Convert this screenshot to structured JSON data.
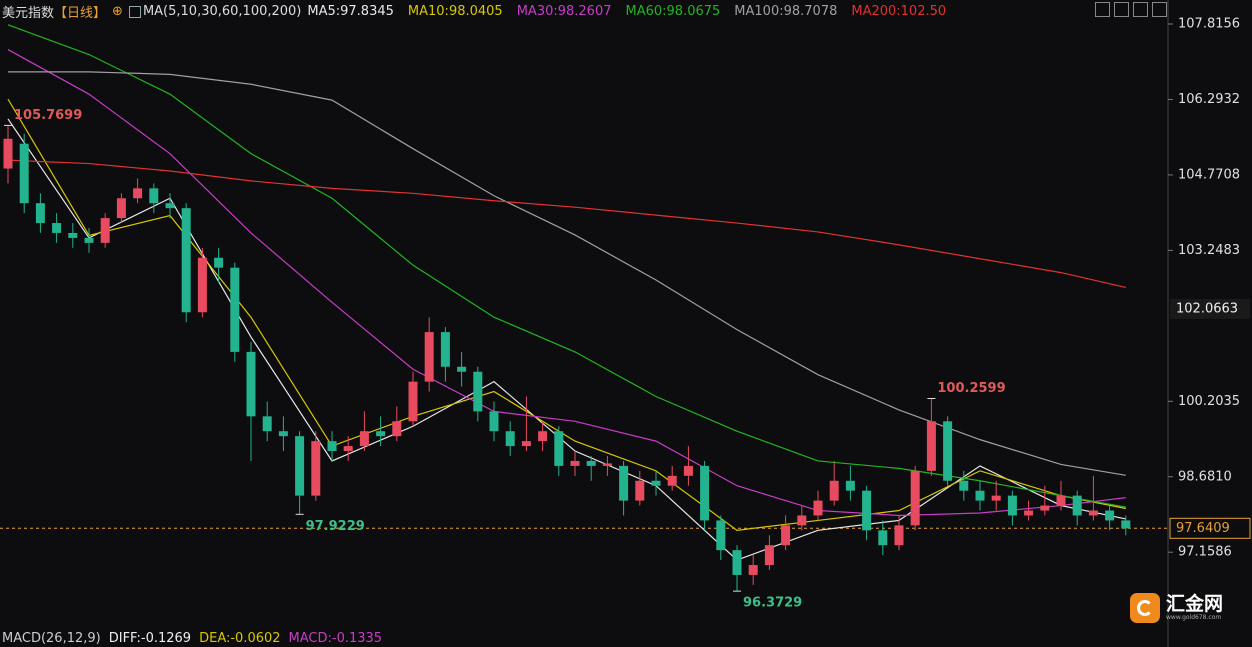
{
  "chart_data": {
    "type": "candlestick",
    "title": "美元指数",
    "period": "【日线】",
    "ma_label": "MA(5,10,30,60,100,200)",
    "categories": [
      null,
      null,
      null,
      null,
      null,
      null,
      null,
      null,
      null,
      null,
      null,
      null,
      null,
      null,
      null,
      null,
      null,
      null,
      null,
      null,
      null,
      null,
      null,
      null,
      null,
      null,
      null,
      null,
      null,
      null,
      null,
      null,
      null,
      null,
      null,
      null,
      null,
      null,
      null,
      null,
      null,
      null,
      null,
      null,
      null,
      null,
      null,
      null,
      null,
      null,
      null,
      null,
      null,
      null,
      null,
      null,
      null,
      null,
      null,
      null,
      null,
      null,
      null,
      null,
      null,
      null,
      null,
      null,
      null,
      null
    ],
    "open": [
      104.9,
      105.4,
      104.2,
      103.8,
      103.6,
      103.5,
      103.4,
      103.9,
      104.3,
      104.5,
      104.2,
      104.1,
      102.0,
      103.1,
      102.9,
      101.2,
      99.9,
      99.6,
      99.5,
      98.3,
      99.4,
      99.2,
      99.3,
      99.6,
      99.5,
      99.8,
      100.6,
      101.6,
      100.9,
      100.8,
      100.0,
      99.6,
      99.3,
      99.4,
      99.6,
      98.9,
      99.0,
      98.9,
      98.9,
      98.2,
      98.6,
      98.5,
      98.7,
      98.9,
      97.8,
      97.2,
      96.7,
      96.9,
      97.3,
      97.7,
      97.9,
      98.2,
      98.6,
      98.4,
      97.6,
      97.3,
      97.7,
      98.8,
      99.8,
      98.6,
      98.4,
      98.2,
      98.3,
      97.9,
      98.0,
      98.1,
      98.3,
      97.9,
      98.0,
      97.8
    ],
    "high": [
      105.7699,
      105.6,
      104.4,
      104.0,
      103.8,
      103.7,
      104.0,
      104.4,
      104.7,
      104.6,
      104.4,
      104.2,
      103.3,
      103.3,
      103.0,
      101.4,
      100.2,
      99.9,
      99.6,
      99.6,
      99.6,
      99.5,
      100.0,
      99.9,
      100.1,
      100.8,
      101.9,
      101.7,
      101.2,
      100.9,
      100.2,
      99.8,
      100.3,
      99.8,
      99.7,
      99.2,
      99.1,
      99.1,
      99.0,
      98.8,
      98.8,
      98.9,
      99.3,
      99.0,
      97.9,
      97.3,
      97.1,
      97.5,
      97.9,
      98.1,
      98.4,
      99.0,
      98.9,
      98.5,
      97.8,
      97.9,
      98.9,
      100.2599,
      99.9,
      98.8,
      98.6,
      98.6,
      98.4,
      98.2,
      98.5,
      98.6,
      98.4,
      98.7,
      98.1,
      97.9
    ],
    "low": [
      104.6,
      104.0,
      103.6,
      103.4,
      103.3,
      103.2,
      103.3,
      103.8,
      104.2,
      104.0,
      103.9,
      101.8,
      101.9,
      102.6,
      101.0,
      99.0,
      99.4,
      99.2,
      97.9229,
      98.2,
      99.0,
      99.0,
      99.2,
      99.3,
      99.4,
      99.7,
      100.4,
      100.6,
      100.5,
      99.8,
      99.4,
      99.1,
      99.2,
      99.2,
      98.7,
      98.7,
      98.6,
      98.7,
      97.9,
      98.1,
      98.3,
      98.4,
      98.5,
      97.6,
      97.0,
      96.3729,
      96.5,
      96.8,
      97.2,
      97.6,
      97.8,
      98.1,
      98.2,
      97.4,
      97.1,
      97.2,
      97.6,
      98.7,
      98.5,
      98.2,
      98.0,
      98.0,
      97.7,
      97.8,
      97.9,
      98.0,
      97.7,
      97.8,
      97.6,
      97.5
    ],
    "close": [
      105.5,
      104.2,
      103.8,
      103.6,
      103.5,
      103.4,
      103.9,
      104.3,
      104.5,
      104.2,
      104.1,
      102.0,
      103.1,
      102.9,
      101.2,
      99.9,
      99.6,
      99.5,
      98.3,
      99.4,
      99.2,
      99.3,
      99.6,
      99.5,
      99.8,
      100.6,
      101.6,
      100.9,
      100.8,
      100.0,
      99.6,
      99.3,
      99.4,
      99.6,
      98.9,
      99.0,
      98.9,
      98.95,
      98.2,
      98.6,
      98.5,
      98.7,
      98.9,
      97.8,
      97.2,
      96.7,
      96.9,
      97.3,
      97.7,
      97.9,
      98.2,
      98.6,
      98.4,
      97.6,
      97.3,
      97.7,
      98.8,
      99.8,
      98.6,
      98.4,
      98.2,
      98.3,
      97.9,
      98.0,
      98.1,
      98.3,
      97.9,
      98.0,
      97.8,
      97.64
    ],
    "up_color": "#e84a5f",
    "down_color": "#23b38e",
    "series": [
      {
        "name": "MA5:97.8345",
        "color": "#e8e8e8",
        "x": [
          0,
          5,
          10,
          15,
          20,
          25,
          30,
          35,
          40,
          45,
          50,
          55,
          60,
          65,
          69
        ],
        "values": [
          105.9,
          103.5,
          104.3,
          101.5,
          99.0,
          99.7,
          100.6,
          99.2,
          98.5,
          97.0,
          97.6,
          97.8,
          98.9,
          98.1,
          97.83
        ]
      },
      {
        "name": "MA10:98.0405",
        "color": "#d8c800",
        "x": [
          0,
          5,
          10,
          15,
          20,
          25,
          30,
          35,
          40,
          45,
          50,
          55,
          60,
          65,
          69
        ],
        "values": [
          106.3,
          103.55,
          103.95,
          101.9,
          99.3,
          99.9,
          100.4,
          99.4,
          98.8,
          97.6,
          97.8,
          98.0,
          98.8,
          98.3,
          98.04
        ]
      },
      {
        "name": "MA30:98.2607",
        "color": "#c83cc8",
        "x": [
          0,
          5,
          10,
          15,
          20,
          25,
          30,
          35,
          40,
          45,
          50,
          55,
          60,
          65,
          69
        ],
        "values": [
          107.3,
          106.4,
          105.2,
          103.6,
          102.2,
          100.85,
          100.0,
          99.8,
          99.4,
          98.5,
          98.0,
          97.9,
          97.95,
          98.1,
          98.26
        ]
      },
      {
        "name": "MA60:98.0675",
        "color": "#22b422",
        "x": [
          0,
          5,
          10,
          15,
          20,
          25,
          30,
          35,
          40,
          45,
          50,
          55,
          60,
          65,
          69
        ],
        "values": [
          107.8,
          107.2,
          106.4,
          105.2,
          104.3,
          102.95,
          101.9,
          101.2,
          100.3,
          99.6,
          99.0,
          98.85,
          98.6,
          98.3,
          98.07
        ]
      },
      {
        "name": "MA100:98.7078",
        "color": "#a0a0a0",
        "x": [
          0,
          5,
          10,
          15,
          20,
          25,
          30,
          35,
          40,
          45,
          50,
          55,
          60,
          65,
          69
        ],
        "values": [
          106.85,
          106.85,
          106.8,
          106.6,
          106.28,
          105.3,
          104.35,
          103.56,
          102.65,
          101.65,
          100.74,
          100.03,
          99.43,
          98.93,
          98.71
        ]
      },
      {
        "name": "MA200:102.50",
        "color": "#e23232",
        "x": [
          0,
          5,
          10,
          15,
          20,
          25,
          30,
          35,
          40,
          45,
          50,
          55,
          60,
          65,
          69
        ],
        "values": [
          105.07,
          105.0,
          104.85,
          104.65,
          104.5,
          104.4,
          104.25,
          104.12,
          103.96,
          103.8,
          103.62,
          103.36,
          103.08,
          102.8,
          102.5
        ]
      }
    ],
    "annotations": [
      105.7699,
      97.9229,
      96.3729,
      100.2599
    ],
    "price_tags": [
      102.0663,
      97.6409
    ],
    "ylim": [
      95.69,
      108.3
    ],
    "yticks": [
      107.8156,
      106.2932,
      104.7708,
      103.2483,
      100.2035,
      {
        "value": 98.681,
        "label": "98.6810"
      },
      97.1586
    ],
    "grid": false,
    "indicator": {
      "name": "MACD(26,12,9)",
      "diff": "DIFF:-0.1269",
      "dea": "DEA:-0.0602",
      "macd": "MACD:-0.1335"
    }
  },
  "logo": {
    "name": "汇金网",
    "url": "www.gold678.com"
  }
}
